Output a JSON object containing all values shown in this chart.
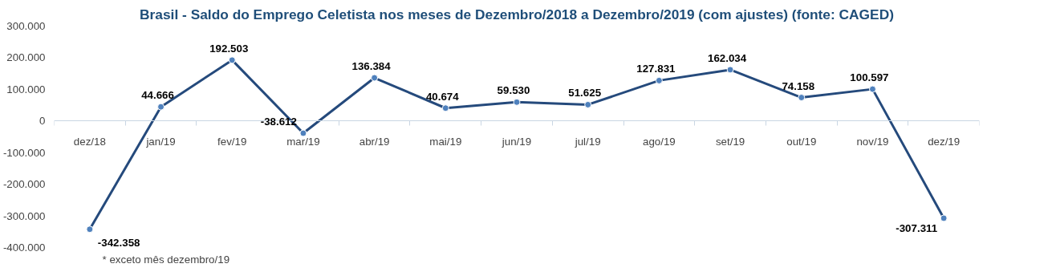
{
  "chart_data": {
    "type": "line",
    "title": "Brasil - Saldo do Emprego Celetista nos meses de Dezembro/2018 a Dezembro/2019 (com ajustes) (fonte: CAGED)",
    "categories": [
      "dez/18",
      "jan/19",
      "fev/19",
      "mar/19",
      "abr/19",
      "mai/19",
      "jun/19",
      "jul/19",
      "ago/19",
      "set/19",
      "out/19",
      "nov/19",
      "dez/19"
    ],
    "series": [
      {
        "color": "#254a7c",
        "values": [
          -342358,
          44666,
          192503,
          -38612,
          136384,
          40674,
          59530,
          51625,
          127831,
          162034,
          74158,
          100597,
          -307311
        ],
        "value_labels": [
          "-342.358",
          "44.666",
          "192.503",
          "-38.612",
          "136.384",
          "40.674",
          "59.530",
          "51.625",
          "127.831",
          "162.034",
          "74.158",
          "100.597",
          "-307.311"
        ]
      }
    ],
    "ylim": [
      -400000,
      300000
    ],
    "yticks": [
      {
        "value": -400000,
        "label": "-400.000"
      },
      {
        "value": -300000,
        "label": "-300.000"
      },
      {
        "value": -200000,
        "label": "-200.000"
      },
      {
        "value": -100000,
        "label": "-100.000"
      },
      {
        "value": 0,
        "label": "0"
      },
      {
        "value": 100000,
        "label": "100.000"
      },
      {
        "value": 200000,
        "label": "200.000"
      },
      {
        "value": 300000,
        "label": "300.000"
      }
    ],
    "marker": "circle",
    "line_style": "solid",
    "grid": false,
    "annotations": [
      "* exceto mês dezembro/19"
    ]
  }
}
